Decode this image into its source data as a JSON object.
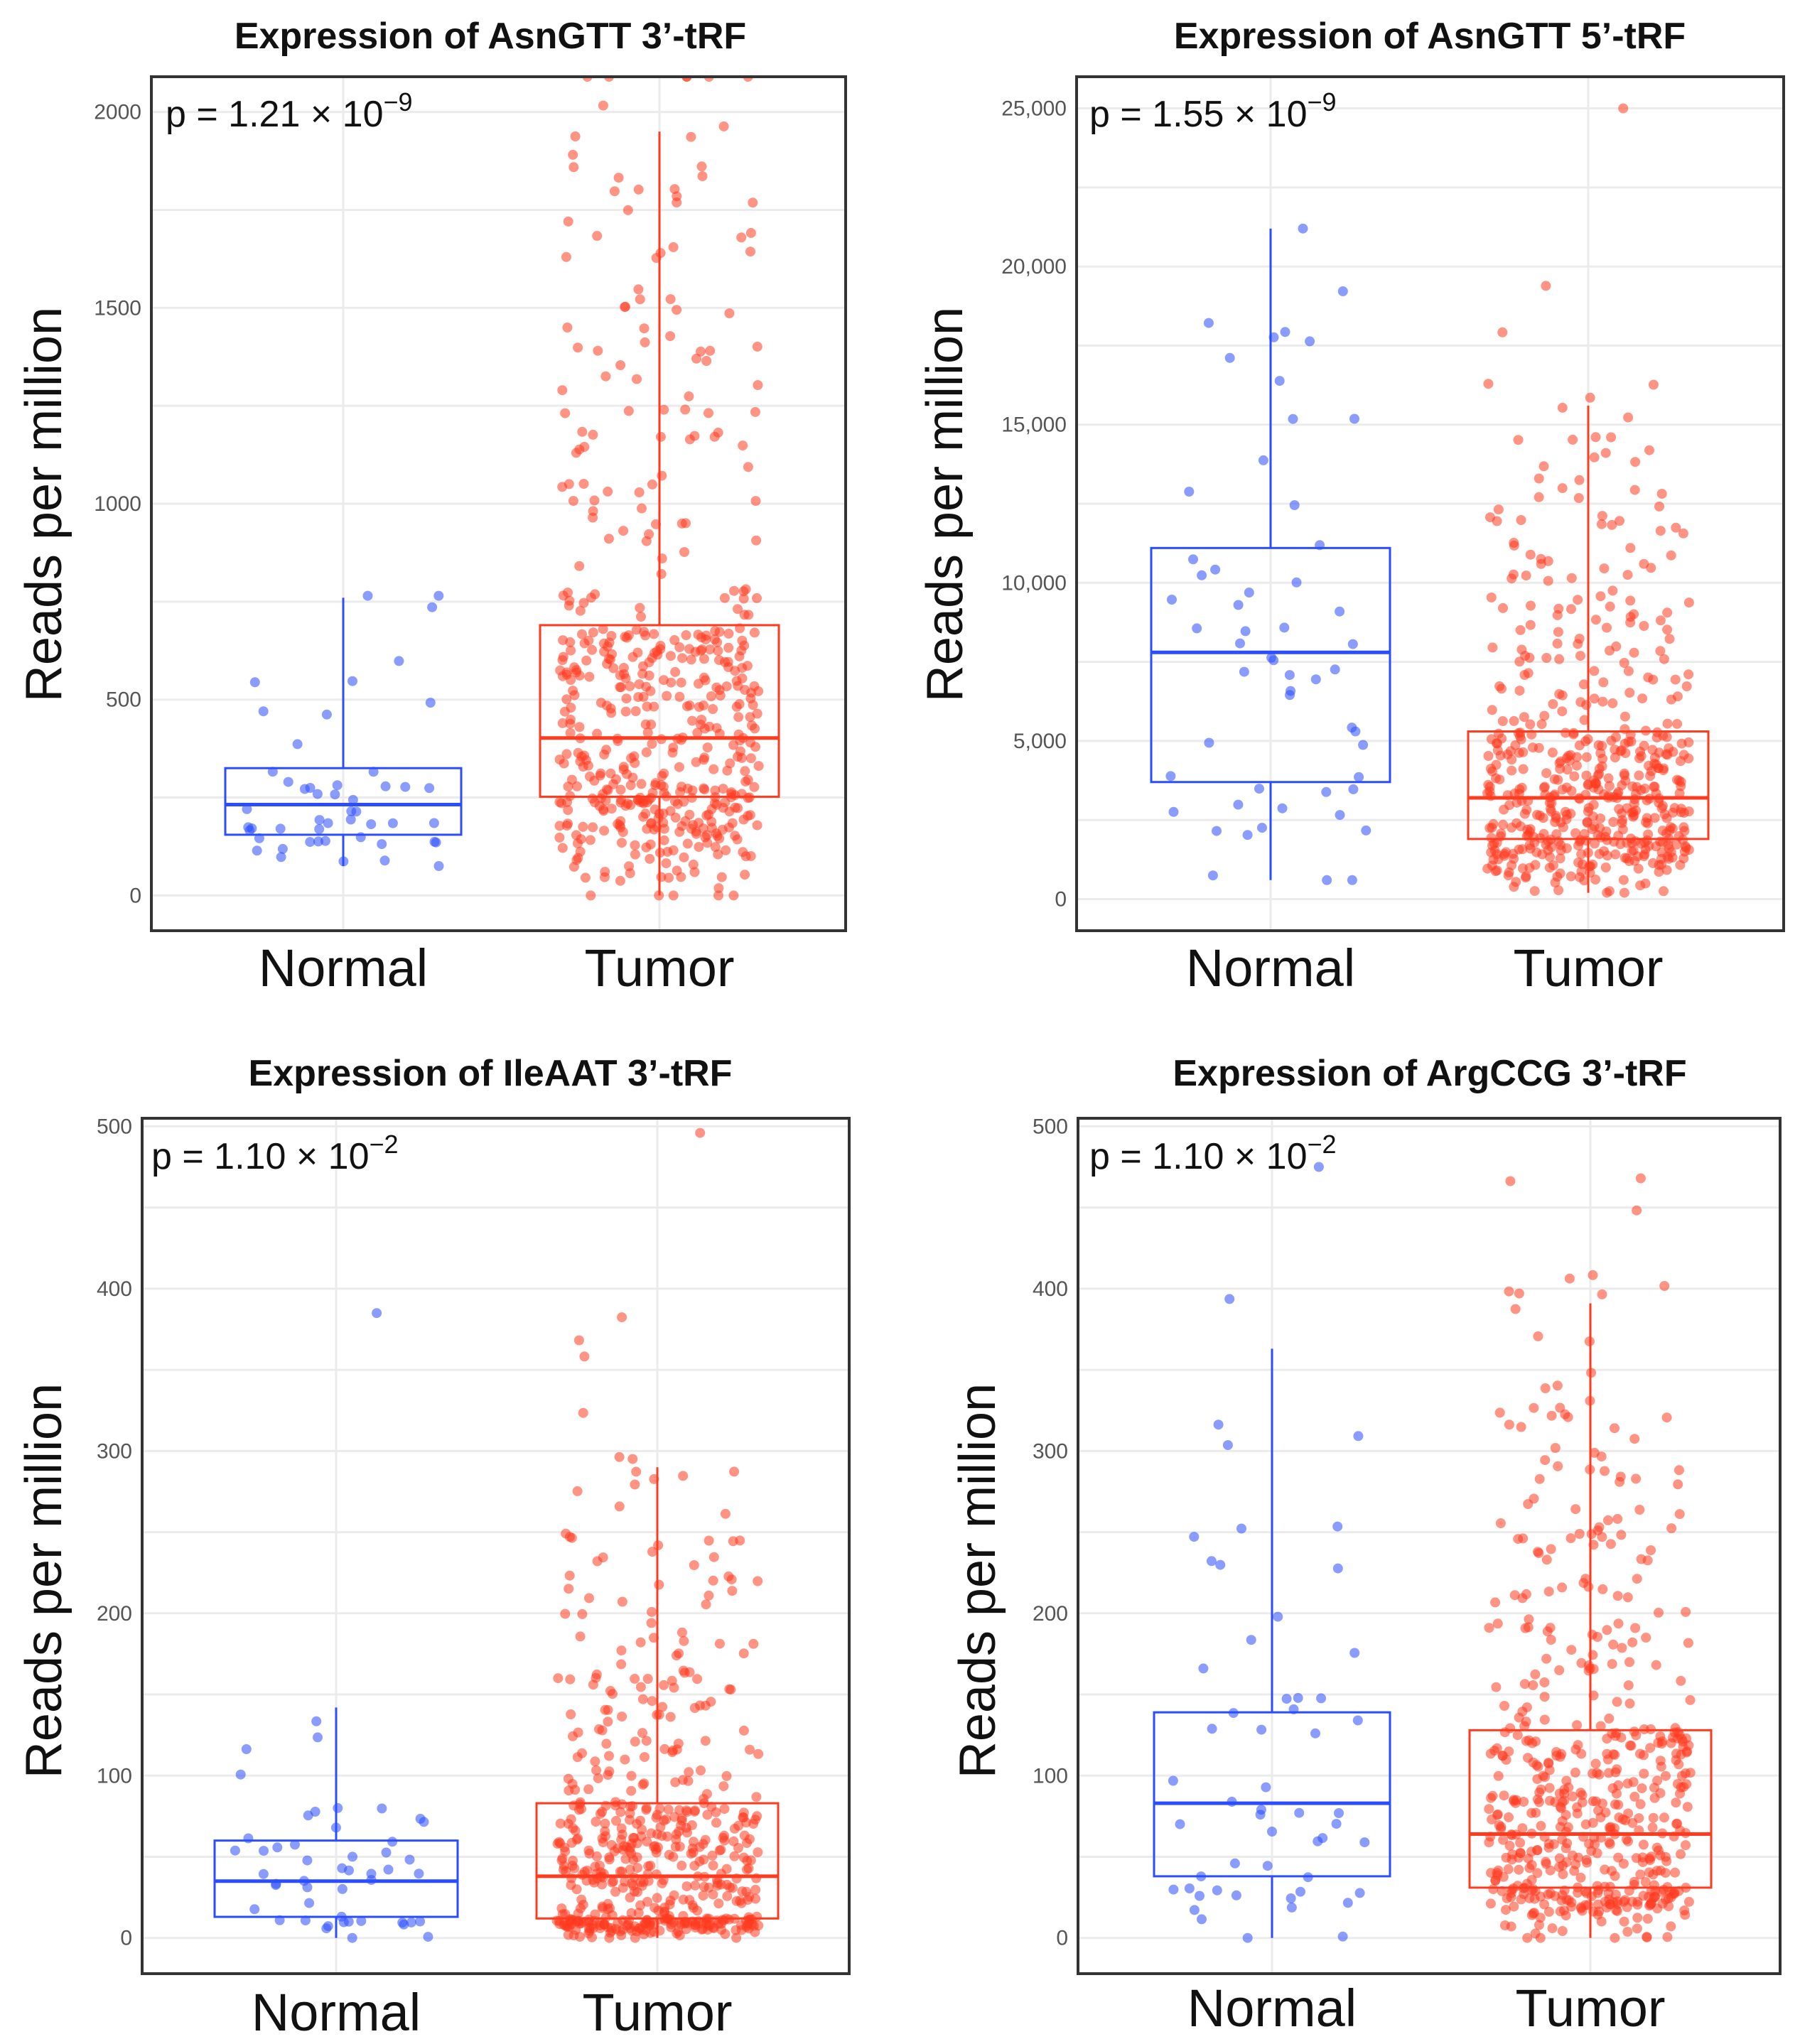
{
  "colors": {
    "normal": "#2a4dff",
    "tumor": "#ff3b1f",
    "grid": "#ebebeb",
    "frame": "#333333"
  },
  "chart_data": [
    {
      "type": "box_jitter",
      "title": "Expression of AsnGTT 3’-tRF",
      "ylabel": "Reads per million",
      "categories": [
        "Normal",
        "Tumor"
      ],
      "ylim": [
        -90,
        2090
      ],
      "yticks": [
        0,
        500,
        1000,
        1500,
        2000
      ],
      "ytick_labels": [
        "0",
        "500",
        "1000",
        "1500",
        "2000"
      ],
      "annotation": {
        "prefix": "p = 1.21 × 10",
        "exponent": "−9"
      },
      "boxes": [
        {
          "group": "Normal",
          "q1": 155,
          "median": 232,
          "q3": 325,
          "whisker_low": 75,
          "whisker_high": 760
        },
        {
          "group": "Tumor",
          "q1": 252,
          "median": 402,
          "q3": 690,
          "whisker_low": 0,
          "whisker_high": 1950
        }
      ],
      "points": {
        "Normal": {
          "n": 50,
          "range": [
            75,
            765
          ]
        },
        "Tumor": {
          "n": 520,
          "range": [
            0,
            2090
          ]
        }
      }
    },
    {
      "type": "box_jitter",
      "title": "Expression of AsnGTT 5’-tRF",
      "ylabel": "Reads per million",
      "categories": [
        "Normal",
        "Tumor"
      ],
      "ylim": [
        -1000,
        26000
      ],
      "yticks": [
        0,
        5000,
        10000,
        15000,
        20000,
        25000
      ],
      "ytick_labels": [
        "0",
        "5,000",
        "10,000",
        "15,000",
        "20,000",
        "25,000"
      ],
      "annotation": {
        "prefix": "p = 1.55 × 10",
        "exponent": "−9"
      },
      "boxes": [
        {
          "group": "Normal",
          "q1": 3700,
          "median": 7800,
          "q3": 11100,
          "whisker_low": 600,
          "whisker_high": 21200
        },
        {
          "group": "Tumor",
          "q1": 1900,
          "median": 3200,
          "q3": 5300,
          "whisker_low": 200,
          "whisker_high": 15600
        }
      ],
      "points": {
        "Normal": {
          "n": 55,
          "range": [
            600,
            21200
          ]
        },
        "Tumor": {
          "n": 520,
          "range": [
            200,
            25000
          ]
        }
      }
    },
    {
      "type": "box_jitter",
      "title": "Expression of IleAAT 3’-tRF",
      "ylabel": "Reads per million",
      "categories": [
        "Normal",
        "Tumor"
      ],
      "ylim": [
        -22,
        505
      ],
      "yticks": [
        0,
        100,
        200,
        300,
        400,
        500
      ],
      "ytick_labels": [
        "0",
        "100",
        "200",
        "300",
        "400",
        "500"
      ],
      "annotation": {
        "prefix": "p = 1.10 × 10",
        "exponent": "−2"
      },
      "boxes": [
        {
          "group": "Normal",
          "q1": 13,
          "median": 35,
          "q3": 60,
          "whisker_low": 0,
          "whisker_high": 142
        },
        {
          "group": "Tumor",
          "q1": 12,
          "median": 38,
          "q3": 83,
          "whisker_low": 0,
          "whisker_high": 290
        }
      ],
      "points": {
        "Normal": {
          "n": 50,
          "range": [
            0,
            385
          ]
        },
        "Tumor": {
          "n": 540,
          "range": [
            0,
            496
          ]
        }
      }
    },
    {
      "type": "box_jitter",
      "title": "Expression of ArgCCG 3’-tRF",
      "ylabel": "Reads per million",
      "categories": [
        "Normal",
        "Tumor"
      ],
      "ylim": [
        -22,
        505
      ],
      "yticks": [
        0,
        100,
        200,
        300,
        400,
        500
      ],
      "ytick_labels": [
        "0",
        "100",
        "200",
        "300",
        "400",
        "500"
      ],
      "annotation": {
        "prefix": "p = 1.10 × 10",
        "exponent": "−2"
      },
      "boxes": [
        {
          "group": "Normal",
          "q1": 38,
          "median": 83,
          "q3": 139,
          "whisker_low": 0,
          "whisker_high": 363
        },
        {
          "group": "Tumor",
          "q1": 31,
          "median": 64,
          "q3": 128,
          "whisker_low": 0,
          "whisker_high": 391
        }
      ],
      "points": {
        "Normal": {
          "n": 55,
          "range": [
            0,
            475
          ]
        },
        "Tumor": {
          "n": 540,
          "range": [
            0,
            468
          ]
        }
      }
    }
  ]
}
